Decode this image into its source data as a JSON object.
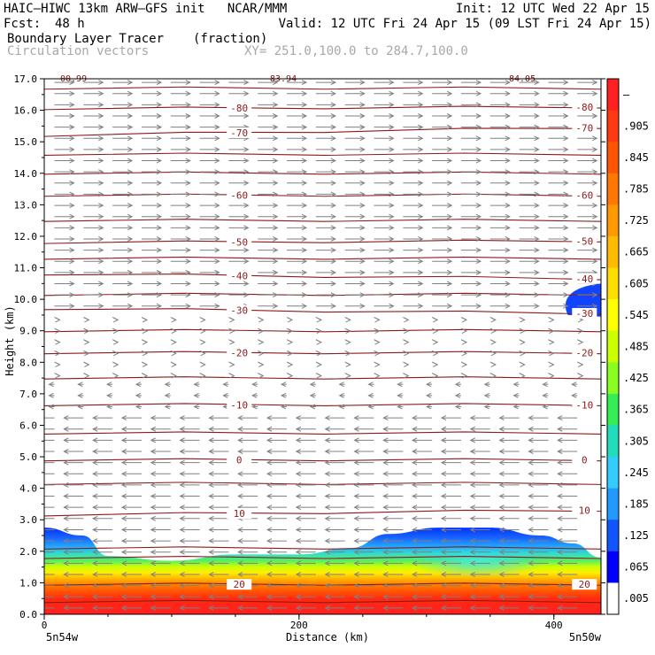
{
  "header": {
    "title_left": "HAIC–HIWC 13km ARW–GFS init   NCAR/MMM",
    "init": "Init: 12 UTC Wed 22 Apr 15",
    "fcst_label": "Fcst:",
    "fcst_value": "48 h",
    "valid": "Valid: 12 UTC Fri 24 Apr 15 (09 LST Fri 24 Apr 15)",
    "field_name": "Boundary Layer Tracer",
    "field_units": "(fraction)",
    "vector_label": "Circulation vectors",
    "xy_range": "XY= 251.0,100.0 to 284.7,100.0"
  },
  "chart_data": {
    "type": "heatmap",
    "xlabel": "Distance (km)",
    "ylabel": "Height (km)",
    "xlim": [
      0,
      437
    ],
    "ylim": [
      0.0,
      17.0
    ],
    "x_ticks": [
      "0",
      "200",
      "400"
    ],
    "y_ticks": [
      "0.0",
      "1.0",
      "2.0",
      "3.0",
      "4.0",
      "5.0",
      "6.0",
      "7.0",
      "8.0",
      "9.0",
      "10.0",
      "11.0",
      "12.0",
      "13.0",
      "14.0",
      "15.0",
      "16.0",
      "17.0"
    ],
    "x_endpoints": {
      "left": "5n54w",
      "right": "5n50w"
    },
    "top_partial_labels": [
      "00.99",
      "83.94",
      "84.05"
    ],
    "colorbar": {
      "labels": [
        "–",
        ".905",
        ".845",
        ".785",
        ".725",
        ".665",
        ".605",
        ".545",
        ".485",
        ".425",
        ".365",
        ".305",
        ".245",
        ".185",
        ".125",
        ".065",
        ".005"
      ],
      "colors": [
        "#ff2020",
        "#ff3a10",
        "#ff5500",
        "#ff7700",
        "#ff9900",
        "#ffbb00",
        "#ffdd00",
        "#ffff00",
        "#ccff00",
        "#88ff20",
        "#33ee55",
        "#22ddbb",
        "#33ccff",
        "#2299ff",
        "#1155ff",
        "#0000ff",
        "#ffffff"
      ]
    },
    "temperature_contours": [
      {
        "label": "-80",
        "height_left": 16.05,
        "height_right": 16.1
      },
      {
        "label": "-70",
        "height_left": 15.2,
        "height_right": 15.45
      },
      {
        "label": "-60",
        "height_left": 13.3,
        "height_right": 13.3
      },
      {
        "label": "-50",
        "height_left": 11.8,
        "height_right": 11.85
      },
      {
        "label": "-40",
        "height_left": 10.8,
        "height_right": 10.65
      },
      {
        "label": "-30",
        "height_left": 9.7,
        "height_right": 9.55
      },
      {
        "label": "-20",
        "height_left": 8.3,
        "height_right": 8.3
      },
      {
        "label": "-10",
        "height_left": 6.65,
        "height_right": 6.65
      },
      {
        "label": "0",
        "height_left": 4.9,
        "height_right": 4.9
      },
      {
        "label": "10",
        "height_left": 3.15,
        "height_right": 3.3
      },
      {
        "label": "20",
        "height_left": 0.95,
        "height_right": 0.95
      }
    ],
    "extra_contour_heights": [
      0.4,
      1.8,
      2.1,
      4.15,
      5.75,
      7.5,
      9.0,
      10.15,
      11.3,
      12.5,
      14.0,
      14.6,
      16.7
    ],
    "tracer_layer": {
      "top_height_profile": [
        {
          "x": 0,
          "z": 2.75
        },
        {
          "x": 30,
          "z": 2.5
        },
        {
          "x": 50,
          "z": 1.85
        },
        {
          "x": 100,
          "z": 1.7
        },
        {
          "x": 150,
          "z": 1.9
        },
        {
          "x": 200,
          "z": 1.9
        },
        {
          "x": 240,
          "z": 2.1
        },
        {
          "x": 270,
          "z": 2.55
        },
        {
          "x": 310,
          "z": 2.75
        },
        {
          "x": 350,
          "z": 2.75
        },
        {
          "x": 390,
          "z": 2.5
        },
        {
          "x": 415,
          "z": 2.25
        },
        {
          "x": 437,
          "z": 1.8
        }
      ],
      "upper_patch": {
        "x_start": 405,
        "x_end": 437,
        "z_bottom": 9.5,
        "z_top": 10.5
      }
    },
    "wind_direction_by_height": [
      {
        "z": 0.0,
        "dir": "west"
      },
      {
        "z": 3.5,
        "dir": "west"
      },
      {
        "z": 7.5,
        "dir": "calm"
      },
      {
        "z": 9.5,
        "dir": "east"
      },
      {
        "z": 17.0,
        "dir": "east"
      }
    ]
  }
}
